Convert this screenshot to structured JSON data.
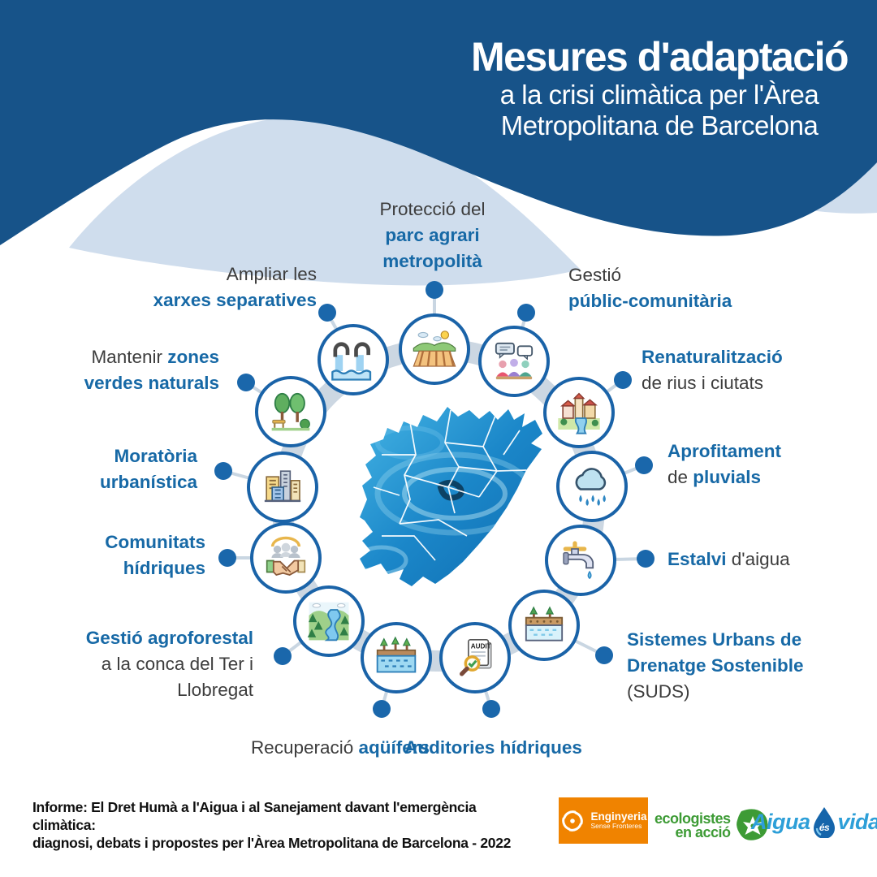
{
  "header": {
    "title": "Mesures d'adaptació",
    "subtitle_line1": "a la crisi climàtica per l'Àrea",
    "subtitle_line2": "Metropolitana de Barcelona"
  },
  "colors": {
    "header_blue": "#175389",
    "wave_light": "#cfdded",
    "accent_blue": "#1769a6",
    "text_dark": "#3d3d3d",
    "ring_gray": "#ccd7e2",
    "dot_blue": "#1a67ab",
    "map_blue": "#1b87c9",
    "esf_orange": "#f08300",
    "ecologistes_green": "#3d9b35",
    "aigua_blue": "#2d9fd8"
  },
  "diagram": {
    "center_map": "Àrea Metropolitana de Barcelona",
    "items": [
      {
        "icon": "farm-field-icon",
        "lines": [
          [
            {
              "t": "Protecció del",
              "em": false
            }
          ],
          [
            {
              "t": "parc agrari",
              "em": true
            }
          ],
          [
            {
              "t": "metropolità",
              "em": true
            }
          ]
        ]
      },
      {
        "icon": "community-dialogue-icon",
        "lines": [
          [
            {
              "t": "Gestió",
              "em": false
            }
          ],
          [
            {
              "t": "públic-comunitària",
              "em": true
            }
          ]
        ]
      },
      {
        "icon": "town-river-icon",
        "lines": [
          [
            {
              "t": "Renaturalització",
              "em": true
            }
          ],
          [
            {
              "t": "de rius i ciutats",
              "em": false
            }
          ]
        ]
      },
      {
        "icon": "rain-cloud-icon",
        "lines": [
          [
            {
              "t": "Aprofitament",
              "em": true
            }
          ],
          [
            {
              "t": "de ",
              "em": false
            },
            {
              "t": "pluvials",
              "em": true
            }
          ]
        ]
      },
      {
        "icon": "faucet-icon",
        "lines": [
          [
            {
              "t": "Estalvi",
              "em": true
            },
            {
              "t": " d'aigua",
              "em": false
            }
          ]
        ]
      },
      {
        "icon": "suds-drainage-icon",
        "lines": [
          [
            {
              "t": "Sistemes Urbans de",
              "em": true
            }
          ],
          [
            {
              "t": "Drenatge Sostenible",
              "em": true
            }
          ],
          [
            {
              "t": "(SUDS)",
              "em": false
            }
          ]
        ]
      },
      {
        "icon": "audit-document-icon",
        "lines": [
          [
            {
              "t": "Auditories hídriques",
              "em": true
            }
          ]
        ]
      },
      {
        "icon": "aquifer-icon",
        "lines": [
          [
            {
              "t": "Recuperació ",
              "em": false
            },
            {
              "t": "aqüífers",
              "em": true
            }
          ]
        ]
      },
      {
        "icon": "forest-river-icon",
        "lines": [
          [
            {
              "t": "Gestió agroforestal",
              "em": true
            }
          ],
          [
            {
              "t": "a la conca del Ter i",
              "em": false
            }
          ],
          [
            {
              "t": "Llobregat",
              "em": false
            }
          ]
        ]
      },
      {
        "icon": "handshake-community-icon",
        "lines": [
          [
            {
              "t": "Comunitats",
              "em": true
            }
          ],
          [
            {
              "t": "hídriques",
              "em": true
            }
          ]
        ]
      },
      {
        "icon": "city-buildings-icon",
        "lines": [
          [
            {
              "t": "Moratòria",
              "em": true
            }
          ],
          [
            {
              "t": "urbanística",
              "em": true
            }
          ]
        ]
      },
      {
        "icon": "park-trees-icon",
        "lines": [
          [
            {
              "t": "Mantenir ",
              "em": false
            },
            {
              "t": "zones",
              "em": true
            }
          ],
          [
            {
              "t": "verdes naturals",
              "em": true
            }
          ]
        ]
      },
      {
        "icon": "water-pipes-icon",
        "lines": [
          [
            {
              "t": "Ampliar les",
              "em": false
            },
            {
              "t": " ",
              "em": false
            }
          ],
          [
            {
              "t": "xarxes separatives",
              "em": true
            }
          ]
        ]
      }
    ]
  },
  "footer": {
    "report_line1": "Informe: El Dret Humà a l'Aigua i al Sanejament davant l'emergència climàtica:",
    "report_line2": "diagnosi, debats i propostes per l'Àrea Metropolitana de Barcelona - 2022",
    "logos": {
      "esf": {
        "line1": "Enginyeria",
        "line2": "Sense Fronteres"
      },
      "eco": {
        "line1": "ecologistes",
        "line2": "en acció"
      },
      "aev": {
        "word1": "Aigua",
        "word2": "és",
        "word3": "vida"
      }
    }
  }
}
